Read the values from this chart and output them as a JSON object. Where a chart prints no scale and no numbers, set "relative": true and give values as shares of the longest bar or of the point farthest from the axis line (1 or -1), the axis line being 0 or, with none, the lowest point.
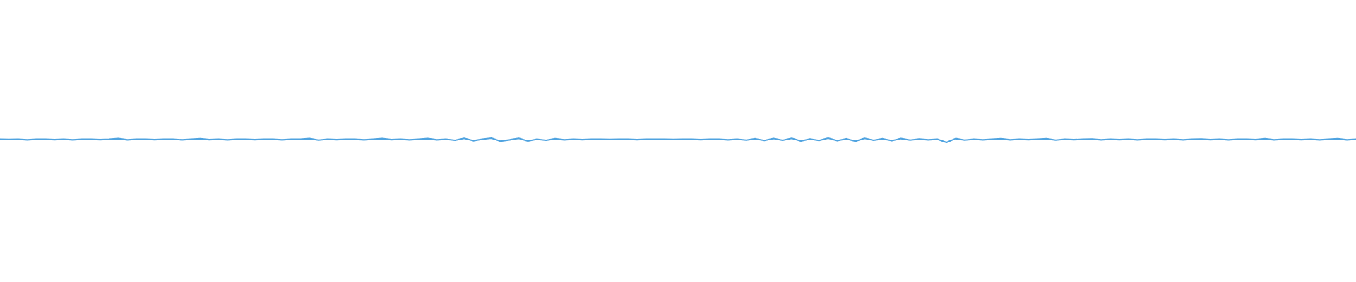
{
  "chart_data": {
    "type": "line",
    "relative": true,
    "color": "#4fa3e0",
    "categories": [
      null,
      null,
      null,
      null,
      null,
      null,
      null,
      null,
      null,
      null,
      null,
      null,
      null,
      null,
      null,
      null,
      null,
      null,
      null,
      null,
      null,
      null,
      null,
      null,
      null,
      null,
      null,
      null,
      null,
      null,
      null,
      null,
      null,
      null,
      null,
      null,
      null,
      null,
      null,
      null,
      null,
      null,
      null,
      null,
      null,
      null,
      null,
      null,
      null,
      null,
      null,
      null,
      null,
      null,
      null,
      null,
      null,
      null,
      null,
      null,
      null,
      null,
      null,
      null,
      null,
      null,
      null,
      null,
      null,
      null,
      null,
      null,
      null,
      null,
      null,
      null,
      null,
      null,
      null,
      null,
      null,
      null,
      null,
      null,
      null,
      null,
      null,
      null,
      null,
      null,
      null,
      null,
      null,
      null,
      null,
      null,
      null,
      null,
      null,
      null,
      null,
      null,
      null,
      null,
      null,
      null,
      null,
      null,
      null,
      null,
      null,
      null,
      null,
      null,
      null,
      null,
      null,
      null,
      null,
      null,
      null,
      null,
      null,
      null,
      null,
      null,
      null,
      null,
      null,
      null,
      null,
      null,
      null,
      null,
      null,
      null,
      null,
      null,
      null,
      null,
      null,
      null,
      null,
      null,
      null,
      null,
      null,
      null,
      null,
      null
    ],
    "values": [
      0.75,
      0.7,
      0.75,
      0.6,
      0.75,
      0.75,
      0.65,
      0.75,
      0.6,
      0.75,
      0.75,
      0.65,
      0.75,
      0.9,
      0.6,
      0.75,
      0.75,
      0.65,
      0.75,
      0.75,
      0.6,
      0.75,
      0.85,
      0.65,
      0.75,
      0.6,
      0.75,
      0.75,
      0.65,
      0.75,
      0.75,
      0.6,
      0.75,
      0.75,
      0.9,
      0.55,
      0.75,
      0.65,
      0.75,
      0.75,
      0.6,
      0.75,
      0.9,
      0.65,
      0.75,
      0.6,
      0.75,
      0.9,
      0.6,
      0.75,
      0.5,
      0.95,
      0.4,
      0.75,
      1,
      0.3,
      0.6,
      0.95,
      0.35,
      0.75,
      0.5,
      0.85,
      0.6,
      0.75,
      0.65,
      0.75,
      0.75,
      0.7,
      0.75,
      0.75,
      0.65,
      0.75,
      0.75,
      0.75,
      0.7,
      0.75,
      0.75,
      0.65,
      0.75,
      0.75,
      0.6,
      0.75,
      0.55,
      0.85,
      0.45,
      0.9,
      0.5,
      0.95,
      0.35,
      0.8,
      0.45,
      1,
      0.4,
      0.85,
      0.3,
      0.95,
      0.5,
      0.85,
      0.4,
      0.9,
      0.55,
      0.8,
      0.6,
      0.75,
      0,
      0.9,
      0.55,
      0.75,
      0.6,
      0.75,
      0.85,
      0.6,
      0.75,
      0.65,
      0.75,
      0.85,
      0.55,
      0.75,
      0.65,
      0.75,
      0.8,
      0.6,
      0.75,
      0.65,
      0.75,
      0.6,
      0.75,
      0.75,
      0.65,
      0.75,
      0.6,
      0.75,
      0.8,
      0.65,
      0.75,
      0.6,
      0.75,
      0.75,
      0.65,
      0.85,
      0.6,
      0.75,
      0.75,
      0.65,
      0.75,
      0.6,
      0.75,
      0.85,
      0.6,
      0.75
    ]
  }
}
